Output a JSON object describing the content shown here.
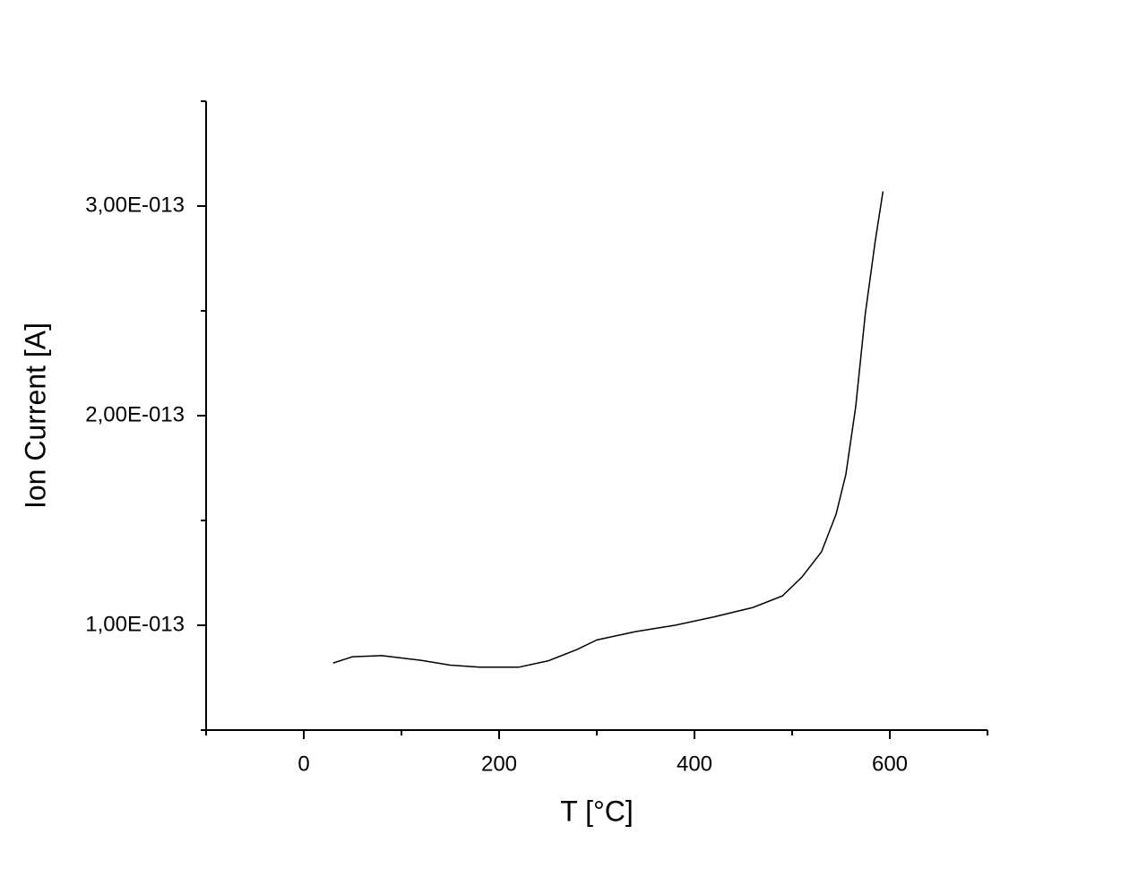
{
  "chart_data": {
    "type": "line",
    "x_label": "T [°C]",
    "y_label": "Ion Current [A]",
    "xlim": [
      -100,
      700
    ],
    "xticks": [
      0,
      200,
      400,
      600
    ],
    "ylim": [
      5e-14,
      3.5e-13
    ],
    "yticks": [
      {
        "value": 1e-13,
        "label": "1,00E-013"
      },
      {
        "value": 2e-13,
        "label": "2,00E-013"
      },
      {
        "value": 3e-13,
        "label": "3,00E-013"
      }
    ],
    "x": [
      30,
      50,
      80,
      120,
      150,
      180,
      220,
      250,
      280,
      300,
      340,
      380,
      420,
      460,
      490,
      510,
      530,
      545,
      555,
      565,
      575,
      585,
      593
    ],
    "series": [
      {
        "color": "#000000",
        "values": [
          8.2e-14,
          8.5e-14,
          8.55e-14,
          8.33e-14,
          8.1e-14,
          8e-14,
          8e-14,
          8.3e-14,
          8.85e-14,
          9.3e-14,
          9.7e-14,
          1e-13,
          1.04e-13,
          1.085e-13,
          1.14e-13,
          1.23e-13,
          1.35e-13,
          1.53e-13,
          1.72e-13,
          2.04e-13,
          2.49e-13,
          2.83e-13,
          3.07e-13
        ]
      }
    ]
  }
}
